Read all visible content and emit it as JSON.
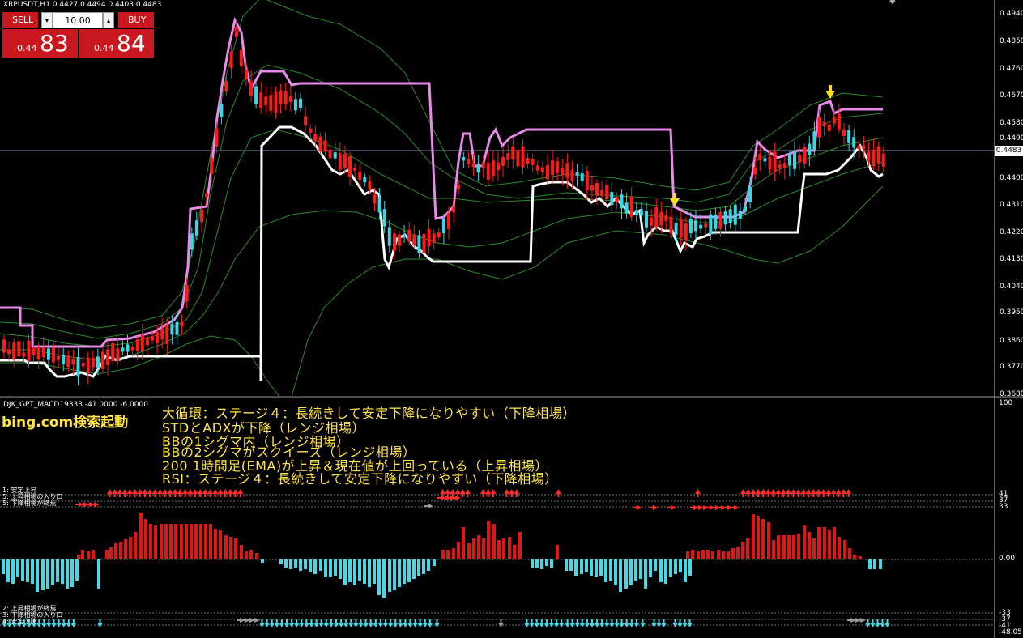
{
  "window": {
    "title": "XRPUSDT,H1  0.4427 0.4494 0.4403 0.4483"
  },
  "trade_panel": {
    "sell_label": "SELL",
    "buy_label": "BUY",
    "lot_value": "10.00",
    "sell_prefix": "0.44",
    "sell_big": "83",
    "buy_prefix": "0.44",
    "buy_big": "84",
    "spin_down": "▾",
    "spin_up": "▴"
  },
  "price_axis": {
    "labels": [
      "0.4940",
      "0.4850",
      "0.4760",
      "0.4670",
      "0.4580",
      "0.4490",
      "0.4400",
      "0.4310",
      "0.4220",
      "0.4130",
      "0.4040",
      "0.3950",
      "0.3860",
      "0.3770",
      "0.3680"
    ],
    "current_price": "0.4483"
  },
  "indicator": {
    "name": "DJK_GPT_MACD19333 -41.0000 -6.0000",
    "axis_top": "100",
    "axis_zero": "0.00",
    "axis_bottom": "-48.05",
    "levels_upper": [
      "41",
      "37",
      "33"
    ],
    "levels_lower": [
      "-33",
      "-37",
      "-41"
    ],
    "upper_labels": [
      "1: 安定上昇",
      "5: 上昇相場の入り口",
      "5: 下降相場が終焉"
    ],
    "lower_labels": [
      "2: 上昇相場が終焉",
      "3: 下降相場の入り口",
      "4: 安定下降"
    ]
  },
  "overlay": {
    "bing": "bing.com検索起動",
    "lines": [
      "大循環：ステージ４：長続きして安定下降になりやすい（下降相場）",
      "STDとADXが下降（レンジ相場）",
      "BBの1シグマ内（レンジ相場）",
      "BBの2シグマがスクイーズ（レンジ相場）",
      "200 1時間足(EMA)が上昇＆現在値が上回っている（上昇相場）",
      "RSI：ステージ４：長続きして安定下降になりやすい（下降相場）"
    ]
  },
  "colors": {
    "bull_candle": "#39d6e3",
    "bear_candle": "#ff1a1a",
    "upper_band": "#e88ae8",
    "lower_band": "#ffffff",
    "bollinger": "#2c8a2c",
    "text_overlay": "#ffe44a",
    "signal_arrow": "#ffe11a"
  }
}
